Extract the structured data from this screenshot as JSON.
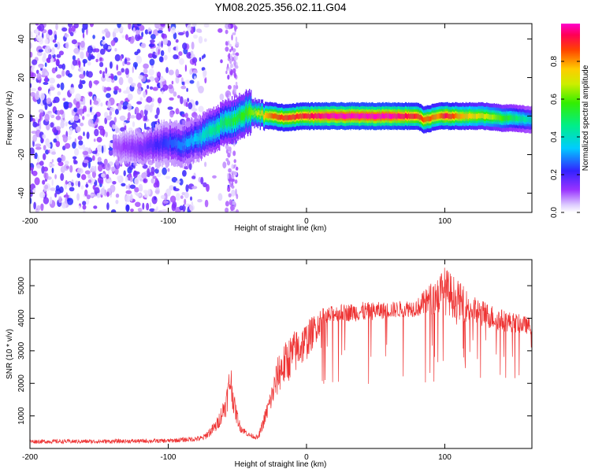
{
  "title": "YM08.2025.356.02.11.G04",
  "chart_data": [
    {
      "type": "heatmap",
      "name": "spectrogram",
      "xlabel": "Height of straight line (km)",
      "ylabel": "Frequency (Hz)",
      "xlim": [
        -200,
        163
      ],
      "ylim": [
        -50,
        48
      ],
      "x_ticks": [
        -200,
        -100,
        0,
        100
      ],
      "x_tick_labels": [
        "-200",
        "-100",
        "0",
        "100"
      ],
      "y_ticks": [
        -40,
        -20,
        0,
        20,
        40
      ],
      "y_tick_labels": [
        "-40",
        "-20",
        "0",
        "20",
        "40"
      ],
      "colorbar": {
        "label": "Normalized spectral amplitude",
        "range": [
          0.0,
          1.0
        ],
        "ticks": [
          0.0,
          0.2,
          0.4,
          0.6,
          0.8
        ],
        "tick_labels": [
          "0.0",
          "0.2",
          "0.4",
          "0.6",
          "0.8"
        ]
      },
      "ridge": {
        "x": [
          -140,
          -120,
          -110,
          -100,
          -90,
          -80,
          -70,
          -60,
          -50,
          -42,
          -35,
          -25,
          -15,
          -5,
          5,
          20,
          40,
          60,
          70,
          80,
          85,
          90,
          95,
          100,
          110,
          120,
          130,
          140,
          150,
          163
        ],
        "freq": [
          -16,
          -17,
          -15,
          -14,
          -15,
          -12,
          -8,
          -4,
          -1,
          2,
          1,
          0,
          -1,
          0,
          0,
          0,
          0,
          0,
          0,
          0,
          -2,
          -1,
          0,
          0,
          0,
          0,
          0,
          -1,
          -1,
          -2
        ],
        "amplitude": [
          0.1,
          0.15,
          0.2,
          0.25,
          0.3,
          0.35,
          0.45,
          0.5,
          0.55,
          0.6,
          0.7,
          0.85,
          0.9,
          0.9,
          0.95,
          1.0,
          1.0,
          1.0,
          0.95,
          0.9,
          0.85,
          0.85,
          0.8,
          0.95,
          0.8,
          0.75,
          0.7,
          0.6,
          0.5,
          0.4
        ]
      }
    },
    {
      "type": "line",
      "name": "snr",
      "xlabel": "Height of straight line (km)",
      "ylabel": "SNR (10 * v/v)",
      "xlim": [
        -200,
        163
      ],
      "ylim": [
        0,
        5800
      ],
      "x_ticks": [
        -200,
        -100,
        0,
        100
      ],
      "x_tick_labels": [
        "-200",
        "-100",
        "0",
        "100"
      ],
      "y_ticks": [
        1000,
        2000,
        3000,
        4000,
        5000
      ],
      "y_tick_labels": [
        "1000",
        "2000",
        "3000",
        "4000",
        "5000"
      ],
      "color": "#ee3333",
      "envelope": {
        "x": [
          -200,
          -150,
          -100,
          -75,
          -65,
          -58,
          -55,
          -52,
          -48,
          -42,
          -35,
          -30,
          -25,
          -20,
          -10,
          0,
          10,
          20,
          40,
          60,
          80,
          100,
          120,
          140,
          163
        ],
        "base": [
          150,
          150,
          170,
          220,
          500,
          1000,
          1500,
          900,
          500,
          350,
          250,
          700,
          1200,
          1700,
          2200,
          2700,
          3500,
          3900,
          3900,
          4000,
          4050,
          4100,
          3800,
          3600,
          3500
        ],
        "peak": [
          280,
          280,
          300,
          400,
          900,
          1800,
          2800,
          1600,
          800,
          500,
          400,
          1200,
          2000,
          3000,
          3600,
          3900,
          4300,
          4400,
          4500,
          4500,
          4600,
          5600,
          4700,
          4300,
          4000
        ]
      }
    }
  ]
}
